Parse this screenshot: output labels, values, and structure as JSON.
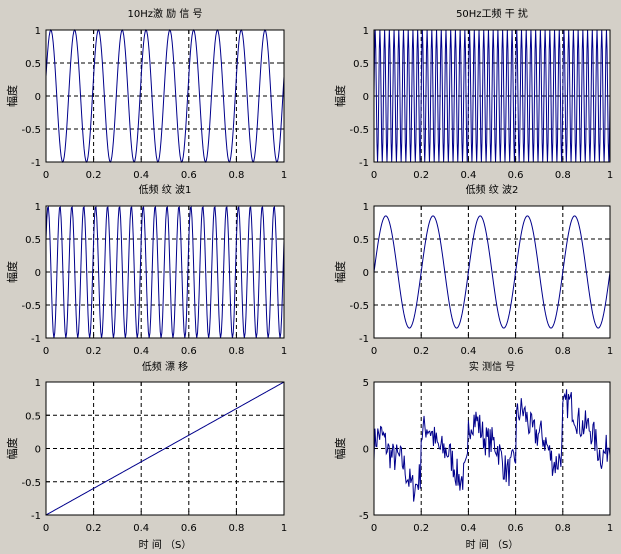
{
  "figure": {
    "background": "#d4d0c8",
    "axes_background": "#ffffff",
    "line_color": "#00008b"
  },
  "chart_data": [
    {
      "type": "line",
      "title": "10Hz激 励 信 号",
      "xlabel": "",
      "ylabel": "幅度",
      "xlim": [
        0,
        1
      ],
      "ylim": [
        -1,
        1
      ],
      "xticks": [
        "0",
        "0.2",
        "0.4",
        "0.6",
        "0.8",
        "1"
      ],
      "yticks": [
        "1",
        "0.5",
        "0",
        "-0.5",
        "-1"
      ],
      "grid": true,
      "series": [
        {
          "function": "sine",
          "frequency_hz": 10,
          "amplitude": 1,
          "phase_rad": 0.3
        }
      ]
    },
    {
      "type": "line",
      "title": "50Hz工频 干 扰",
      "xlabel": "",
      "ylabel": "幅度",
      "xlim": [
        0,
        1
      ],
      "ylim": [
        -1,
        1
      ],
      "xticks": [
        "0",
        "0.2",
        "0.4",
        "0.6",
        "0.8",
        "1"
      ],
      "yticks": [
        "1",
        "0.5",
        "0",
        "-0.5",
        "-1"
      ],
      "grid": true,
      "series": [
        {
          "function": "sine",
          "frequency_hz": 50,
          "amplitude": 1,
          "phase_rad": 0
        }
      ]
    },
    {
      "type": "line",
      "title": "低频 纹 波1",
      "xlabel": "",
      "ylabel": "幅度",
      "xlim": [
        0,
        1
      ],
      "ylim": [
        -1,
        1
      ],
      "xticks": [
        "0",
        "0.2",
        "0.4",
        "0.6",
        "0.8",
        "1"
      ],
      "yticks": [
        "1",
        "0.5",
        "0",
        "-0.5",
        "-1"
      ],
      "grid": true,
      "series": [
        {
          "function": "sine",
          "frequency_hz": 20,
          "amplitude": 1,
          "phase_rad": 0.5
        }
      ]
    },
    {
      "type": "line",
      "title": "低频 纹 波2",
      "xlabel": "",
      "ylabel": "幅度",
      "xlim": [
        0,
        1
      ],
      "ylim": [
        -1,
        1
      ],
      "xticks": [
        "0",
        "0.2",
        "0.4",
        "0.6",
        "0.8",
        "1"
      ],
      "yticks": [
        "1",
        "0.5",
        "0",
        "-0.5",
        "-1"
      ],
      "grid": true,
      "series": [
        {
          "function": "sine",
          "frequency_hz": 5,
          "amplitude": 0.85,
          "phase_rad": 0
        }
      ]
    },
    {
      "type": "line",
      "title": "低频 漂 移",
      "xlabel": "时 间 （S）",
      "ylabel": "幅度",
      "xlim": [
        0,
        1
      ],
      "ylim": [
        -1,
        1
      ],
      "xticks": [
        "0",
        "0.2",
        "0.4",
        "0.6",
        "0.8",
        "1"
      ],
      "yticks": [
        "1",
        "0.5",
        "0",
        "-0.5",
        "-1"
      ],
      "grid": true,
      "series": [
        {
          "function": "linear",
          "x": [
            0,
            1
          ],
          "y": [
            -1,
            1
          ]
        }
      ]
    },
    {
      "type": "line",
      "title": "实 测信 号",
      "xlabel": "时 间 （S）",
      "ylabel": "幅度",
      "xlim": [
        0,
        1
      ],
      "ylim": [
        -5,
        5
      ],
      "xticks": [
        "0",
        "0.2",
        "0.4",
        "0.6",
        "0.8",
        "1"
      ],
      "yticks": [
        "5",
        "0",
        "-5"
      ],
      "grid": true,
      "series": [
        {
          "function": "sum_of_components_plus_noise",
          "noise_amplitude": 1.2,
          "trend": [
            -1.5,
            1.5
          ]
        }
      ]
    }
  ]
}
